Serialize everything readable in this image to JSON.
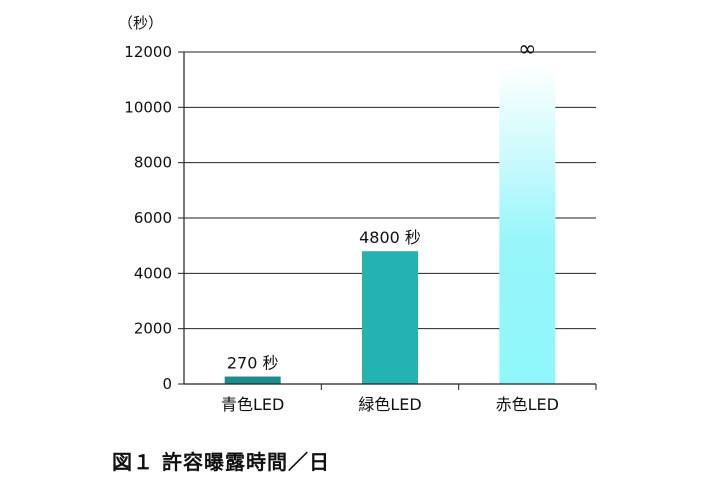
{
  "caption": "図１ 許容曝露時間／日",
  "chart_data": {
    "type": "bar",
    "ylabel": "（秒）",
    "ylim": [
      0,
      12000
    ],
    "yticks": [
      0,
      2000,
      4000,
      6000,
      8000,
      10000,
      12000
    ],
    "grid": true,
    "categories": [
      "青色LED",
      "緑色LED",
      "赤色LED"
    ],
    "values": [
      270,
      4800,
      12000
    ],
    "data_labels": [
      "270 秒",
      "4800 秒",
      "∞"
    ],
    "infinite": [
      false,
      false,
      true
    ],
    "colors": [
      "#1e8c8c",
      "#25b2b2",
      "#8ff7fb"
    ]
  }
}
